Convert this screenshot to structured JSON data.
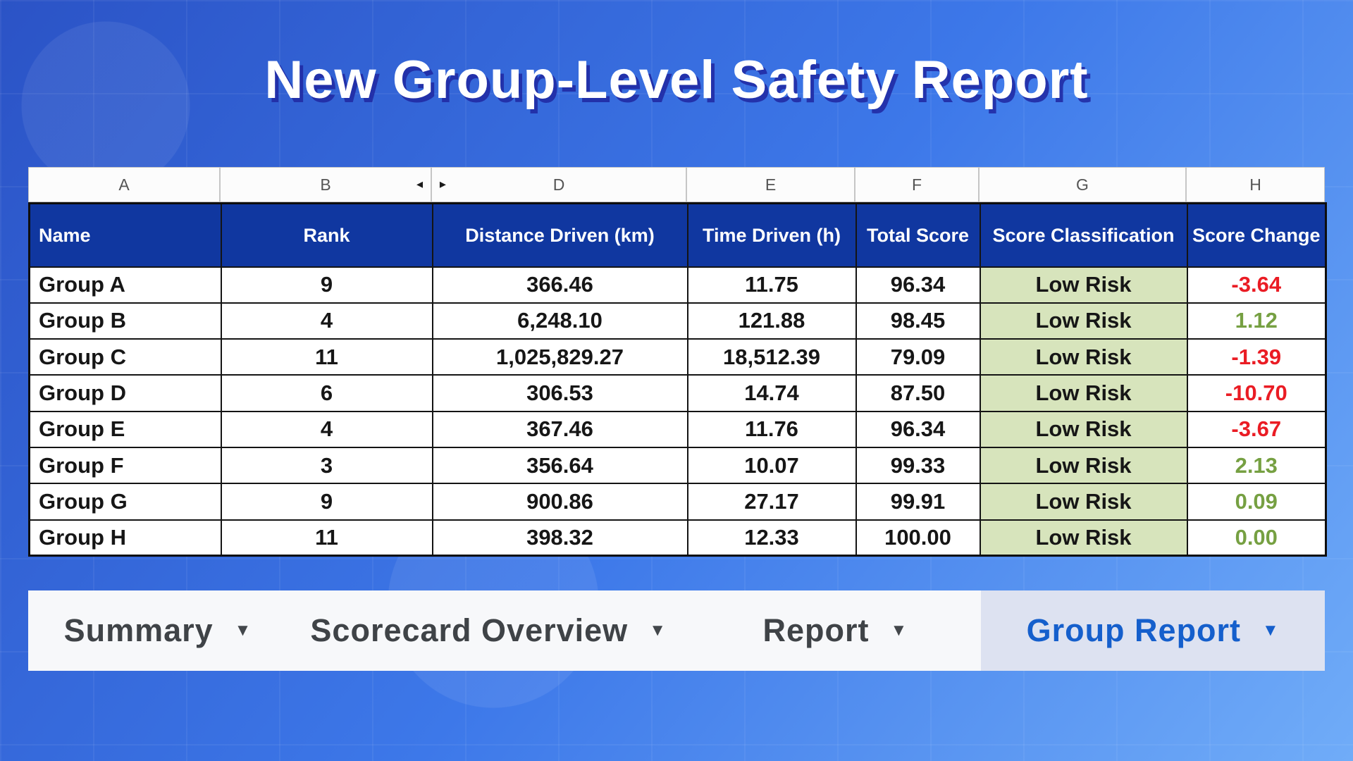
{
  "title": "New Group-Level Safety Report",
  "colors": {
    "header_blue": "#1037a0",
    "low_risk_bg": "#d7e4bc",
    "negative_change": "#ea1c24",
    "positive_change": "#76a042",
    "active_tab_text": "#155fcc",
    "active_tab_bg": "#dde2f1"
  },
  "icons": {
    "dropdown": "▼",
    "hidden_col_left": "◄",
    "hidden_col_right": "►"
  },
  "spreadsheet": {
    "column_letters": [
      "A",
      "B",
      "D",
      "E",
      "F",
      "G",
      "H"
    ],
    "hidden_between": [
      "B",
      "D"
    ],
    "headers": [
      "Name",
      "Rank",
      "Distance Driven (km)",
      "Time Driven (h)",
      "Total Score",
      "Score Classification",
      "Score Change"
    ],
    "rows": [
      {
        "name": "Group A",
        "rank": "9",
        "distance": "366.46",
        "time": "11.75",
        "total": "96.34",
        "classification": "Low Risk",
        "change": "-3.64"
      },
      {
        "name": "Group B",
        "rank": "4",
        "distance": "6,248.10",
        "time": "121.88",
        "total": "98.45",
        "classification": "Low Risk",
        "change": "1.12"
      },
      {
        "name": "Group C",
        "rank": "11",
        "distance": "1,025,829.27",
        "time": "18,512.39",
        "total": "79.09",
        "classification": "Low Risk",
        "change": "-1.39"
      },
      {
        "name": "Group D",
        "rank": "6",
        "distance": "306.53",
        "time": "14.74",
        "total": "87.50",
        "classification": "Low Risk",
        "change": "-10.70"
      },
      {
        "name": "Group E",
        "rank": "4",
        "distance": "367.46",
        "time": "11.76",
        "total": "96.34",
        "classification": "Low Risk",
        "change": "-3.67"
      },
      {
        "name": "Group F",
        "rank": "3",
        "distance": "356.64",
        "time": "10.07",
        "total": "99.33",
        "classification": "Low Risk",
        "change": "2.13"
      },
      {
        "name": "Group G",
        "rank": "9",
        "distance": "900.86",
        "time": "27.17",
        "total": "99.91",
        "classification": "Low Risk",
        "change": "0.09"
      },
      {
        "name": "Group H",
        "rank": "11",
        "distance": "398.32",
        "time": "12.33",
        "total": "100.00",
        "classification": "Low Risk",
        "change": "0.00"
      }
    ]
  },
  "tabs": [
    {
      "label": "Summary",
      "active": false
    },
    {
      "label": "Scorecard Overview",
      "active": false
    },
    {
      "label": "Report",
      "active": false
    },
    {
      "label": "Group Report",
      "active": true
    }
  ]
}
